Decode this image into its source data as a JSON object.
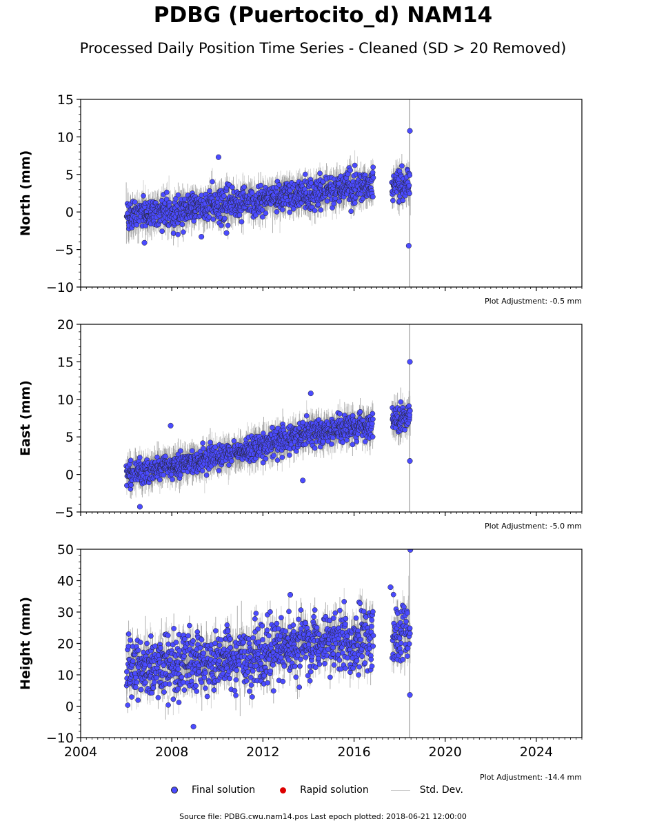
{
  "chart_data": {
    "type": "scatter",
    "title": "PDBG (Puertocito_d) NAM14",
    "subtitle": "Processed Daily Position Time Series - Cleaned (SD > 20 Removed)",
    "xlim": [
      2004,
      2026
    ],
    "xticks": [
      2004,
      2008,
      2012,
      2016,
      2020,
      2024
    ],
    "x_minor_step": 0.25,
    "panels": [
      {
        "ylabel": "North (mm)",
        "ylim": [
          -10,
          15
        ],
        "yticks": [
          -10,
          -5,
          0,
          5,
          10,
          15
        ],
        "adjustment": "Plot Adjustment: -0.5 mm",
        "trend": [
          {
            "x": 2006.0,
            "y": -0.5
          },
          {
            "x": 2010.0,
            "y": 0.8
          },
          {
            "x": 2014.0,
            "y": 2.5
          },
          {
            "x": 2016.8,
            "y": 3.5
          },
          {
            "x": 2017.7,
            "y": 3.5
          },
          {
            "x": 2018.47,
            "y": 3.6
          }
        ],
        "noise": 1.3,
        "outliers": [
          {
            "x": 2010.05,
            "y": 7.3
          },
          {
            "x": 2018.45,
            "y": 10.8
          },
          {
            "x": 2018.4,
            "y": -4.5
          },
          {
            "x": 2006.8,
            "y": -4.1
          },
          {
            "x": 2009.3,
            "y": -3.3
          },
          {
            "x": 2010.4,
            "y": -2.8
          }
        ]
      },
      {
        "ylabel": "East (mm)",
        "ylim": [
          -5,
          20
        ],
        "yticks": [
          -5,
          0,
          5,
          10,
          15,
          20
        ],
        "adjustment": "Plot Adjustment: -5.0 mm",
        "trend": [
          {
            "x": 2006.0,
            "y": 0.0
          },
          {
            "x": 2010.0,
            "y": 2.2
          },
          {
            "x": 2014.0,
            "y": 5.5
          },
          {
            "x": 2016.8,
            "y": 6.5
          },
          {
            "x": 2017.7,
            "y": 7.2
          },
          {
            "x": 2018.47,
            "y": 8.0
          }
        ],
        "noise": 1.0,
        "outliers": [
          {
            "x": 2018.45,
            "y": 15.0
          },
          {
            "x": 2018.45,
            "y": 1.8
          },
          {
            "x": 2013.75,
            "y": -0.8
          },
          {
            "x": 2014.1,
            "y": 10.8
          },
          {
            "x": 2007.95,
            "y": 6.5
          },
          {
            "x": 2006.6,
            "y": -4.3
          }
        ]
      },
      {
        "ylabel": "Height (mm)",
        "ylim": [
          -10,
          50
        ],
        "yticks": [
          -10,
          0,
          10,
          20,
          30,
          40,
          50
        ],
        "adjustment": "Plot Adjustment: -14.4 mm",
        "trend": [
          {
            "x": 2006.0,
            "y": 12.0
          },
          {
            "x": 2010.0,
            "y": 14.0
          },
          {
            "x": 2014.0,
            "y": 20.0
          },
          {
            "x": 2016.8,
            "y": 22.0
          },
          {
            "x": 2017.7,
            "y": 22.0
          },
          {
            "x": 2018.47,
            "y": 24.0
          }
        ],
        "noise": 6.0,
        "outliers": [
          {
            "x": 2018.47,
            "y": 49.8
          },
          {
            "x": 2018.45,
            "y": 3.6
          },
          {
            "x": 2008.95,
            "y": -6.5
          },
          {
            "x": 2013.2,
            "y": 35.5
          },
          {
            "x": 2017.6,
            "y": 37.9
          }
        ]
      }
    ],
    "data_gap": [
      2016.85,
      2017.65
    ],
    "series": [
      {
        "name": "Final solution",
        "color": "#4b4bff"
      },
      {
        "name": "Rapid solution",
        "color": "#dd0000"
      },
      {
        "name": "Std. Dev.",
        "color": "#c8c8c8"
      }
    ]
  },
  "footer": {
    "source": "Source file: PDBG.cwu.nam14.pos  Last epoch plotted: 2018-06-21 12:00:00"
  }
}
